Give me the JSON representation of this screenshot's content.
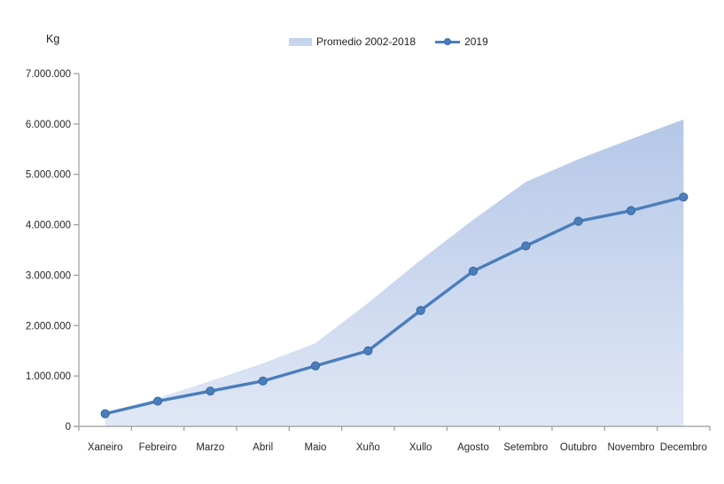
{
  "chart": {
    "y_axis_title": "Kg",
    "legend": [
      {
        "label": "Promedio 2002-2018",
        "type": "area"
      },
      {
        "label": "2019",
        "type": "line"
      }
    ]
  },
  "chart_data": {
    "type": "area",
    "title": "",
    "ylabel": "Kg",
    "xlabel": "",
    "ylim": [
      0,
      7000000
    ],
    "grid": false,
    "legend_position": "top-center",
    "categories": [
      "Xaneiro",
      "Febreiro",
      "Marzo",
      "Abril",
      "Maio",
      "Xuño",
      "Xullo",
      "Agosto",
      "Setembro",
      "Outubro",
      "Novembro",
      "Decembro"
    ],
    "y_tick_labels": [
      "0",
      "1.000.000",
      "2.000.000",
      "3.000.000",
      "4.000.000",
      "5.000.000",
      "6.000.000",
      "7.000.000"
    ],
    "series": [
      {
        "name": "Promedio 2002-2018",
        "type": "area",
        "values": [
          200000,
          560000,
          900000,
          1250000,
          1650000,
          2450000,
          3300000,
          4100000,
          4850000,
          5300000,
          5700000,
          6090000
        ]
      },
      {
        "name": "2019",
        "type": "line",
        "values": [
          250000,
          500000,
          700000,
          900000,
          1200000,
          1500000,
          2300000,
          3080000,
          3580000,
          4070000,
          4280000,
          4550000
        ]
      }
    ],
    "colors": {
      "line": "#4a7ebb",
      "marker_edge": "#3a67a3",
      "area_top": "#b5c7e8",
      "area_bottom": "#e0e7f5",
      "axis": "#9a9a9a",
      "text": "#262626"
    }
  }
}
